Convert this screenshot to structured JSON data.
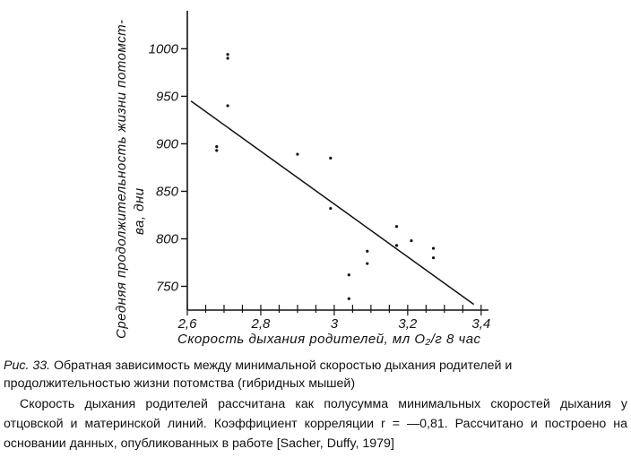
{
  "chart_data": {
    "type": "scatter",
    "xlabel": "Скорость дыхания родителей, мл O₂/г 8 час",
    "ylabel_line1": "Средняя продолжительность жизни потомст-",
    "ylabel_line2": "ва, дни",
    "xlim": [
      2.6,
      3.42
    ],
    "ylim": [
      725,
      1040
    ],
    "x_ticks": [
      2.6,
      2.8,
      3.0,
      3.2,
      3.4
    ],
    "x_tick_labels": [
      "2,6",
      "2,8",
      "3",
      "3,2",
      "3,4"
    ],
    "y_ticks": [
      750,
      800,
      850,
      900,
      950,
      1000
    ],
    "y_tick_labels": [
      "750",
      "800",
      "850",
      "900",
      "950",
      "1000"
    ],
    "points": [
      {
        "x": 2.68,
        "y": 893
      },
      {
        "x": 2.68,
        "y": 897
      },
      {
        "x": 2.71,
        "y": 990
      },
      {
        "x": 2.71,
        "y": 994
      },
      {
        "x": 2.71,
        "y": 940
      },
      {
        "x": 2.9,
        "y": 889
      },
      {
        "x": 2.99,
        "y": 885
      },
      {
        "x": 2.99,
        "y": 832
      },
      {
        "x": 3.04,
        "y": 762
      },
      {
        "x": 3.04,
        "y": 737
      },
      {
        "x": 3.09,
        "y": 787
      },
      {
        "x": 3.09,
        "y": 774
      },
      {
        "x": 3.17,
        "y": 813
      },
      {
        "x": 3.17,
        "y": 793
      },
      {
        "x": 3.21,
        "y": 798
      },
      {
        "x": 3.27,
        "y": 790
      },
      {
        "x": 3.27,
        "y": 780
      }
    ],
    "regression_line": {
      "x1": 2.61,
      "y1": 945,
      "x2": 3.38,
      "y2": 731
    },
    "grid": false
  },
  "caption": {
    "fig_num": "Рис. 33.",
    "text": "Обратная зависимость между минимальной скоростью дыхания родителей и продолжительностью жизни потомства (гибридных мышей)"
  },
  "body_text": "Скорость дыхания родителей рассчитана как полусумма минимальных скоростей дыхания у отцовской и материнской линий. Коэффициент корреляции r = —0,81. Рассчитано и построено на основании данных, опубликованных в работе [Sacher, Duffy, 1979]"
}
